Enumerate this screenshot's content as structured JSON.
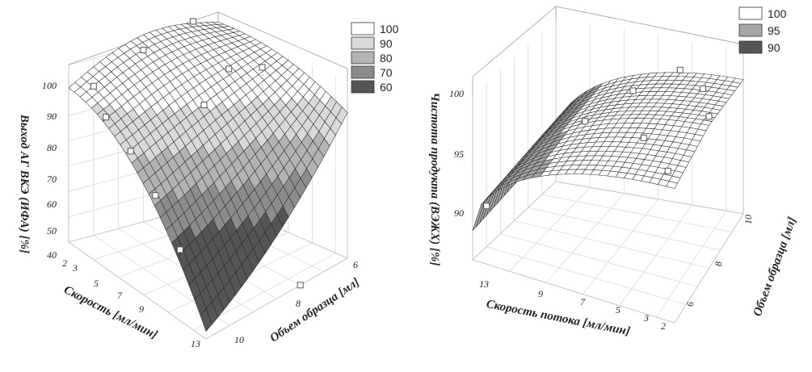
{
  "chart_data": [
    {
      "type": "surface3d",
      "title": "",
      "zlabel": "Выход АГ ВКЭ (ИФА) [%]",
      "xlabel": "Скорость [мл/мин]",
      "ylabel": "Объем образца [мл]",
      "x_ticks": [
        "2",
        "3",
        "5",
        "7",
        "9",
        "13"
      ],
      "y_ticks": [
        "10",
        "8",
        "6"
      ],
      "z_ticks": [
        "100",
        "90",
        "80",
        "70",
        "60",
        "50",
        "40"
      ],
      "xlim": [
        2,
        13
      ],
      "ylim": [
        5,
        11
      ],
      "zlim": [
        30,
        105
      ],
      "legend": [
        {
          "label": "100",
          "color": "#ffffff"
        },
        {
          "label": "90",
          "color": "#d9d9d9"
        },
        {
          "label": "80",
          "color": "#b3b3b3"
        },
        {
          "label": "70",
          "color": "#8c8c8c"
        },
        {
          "label": "60",
          "color": "#555555"
        }
      ],
      "points": [
        {
          "x": 2,
          "y": 10,
          "z": 89
        },
        {
          "x": 3,
          "y": 10,
          "z": 80
        },
        {
          "x": 5,
          "y": 10,
          "z": 73
        },
        {
          "x": 7,
          "y": 10,
          "z": 62
        },
        {
          "x": 9,
          "y": 10,
          "z": 47
        },
        {
          "x": 2,
          "y": 8,
          "z": 98
        },
        {
          "x": 7,
          "y": 8,
          "z": 90
        },
        {
          "x": 2,
          "y": 6,
          "z": 104
        },
        {
          "x": 5,
          "y": 6,
          "z": 92
        },
        {
          "x": 13,
          "y": 7,
          "z": 30
        }
      ]
    },
    {
      "type": "surface3d",
      "title": "",
      "zlabel": "Чистота продукта (ВЭЖХ) [%]",
      "xlabel": "Скорость потока [мл/мин]",
      "ylabel": "Объем образца [мл]",
      "x_ticks": [
        "13",
        "9",
        "7",
        "5",
        "3",
        "2"
      ],
      "y_ticks": [
        "6",
        "8",
        "10"
      ],
      "z_ticks": [
        "100",
        "95",
        "90"
      ],
      "xlim": [
        2,
        13
      ],
      "ylim": [
        5,
        11
      ],
      "zlim": [
        86,
        101
      ],
      "legend": [
        {
          "label": "100",
          "color": "#ffffff"
        },
        {
          "label": "95",
          "color": "#a6a6a6"
        },
        {
          "label": "90",
          "color": "#555555"
        }
      ],
      "points": [
        {
          "x": 13,
          "y": 6,
          "z": 89.5
        },
        {
          "x": 9,
          "y": 8,
          "z": 96
        },
        {
          "x": 7,
          "y": 9,
          "z": 98
        },
        {
          "x": 5,
          "y": 10,
          "z": 99
        },
        {
          "x": 3,
          "y": 9,
          "z": 99.5
        },
        {
          "x": 2,
          "y": 8,
          "z": 99
        },
        {
          "x": 5,
          "y": 7,
          "z": 97.5
        },
        {
          "x": 3,
          "y": 6,
          "z": 97
        }
      ]
    }
  ]
}
